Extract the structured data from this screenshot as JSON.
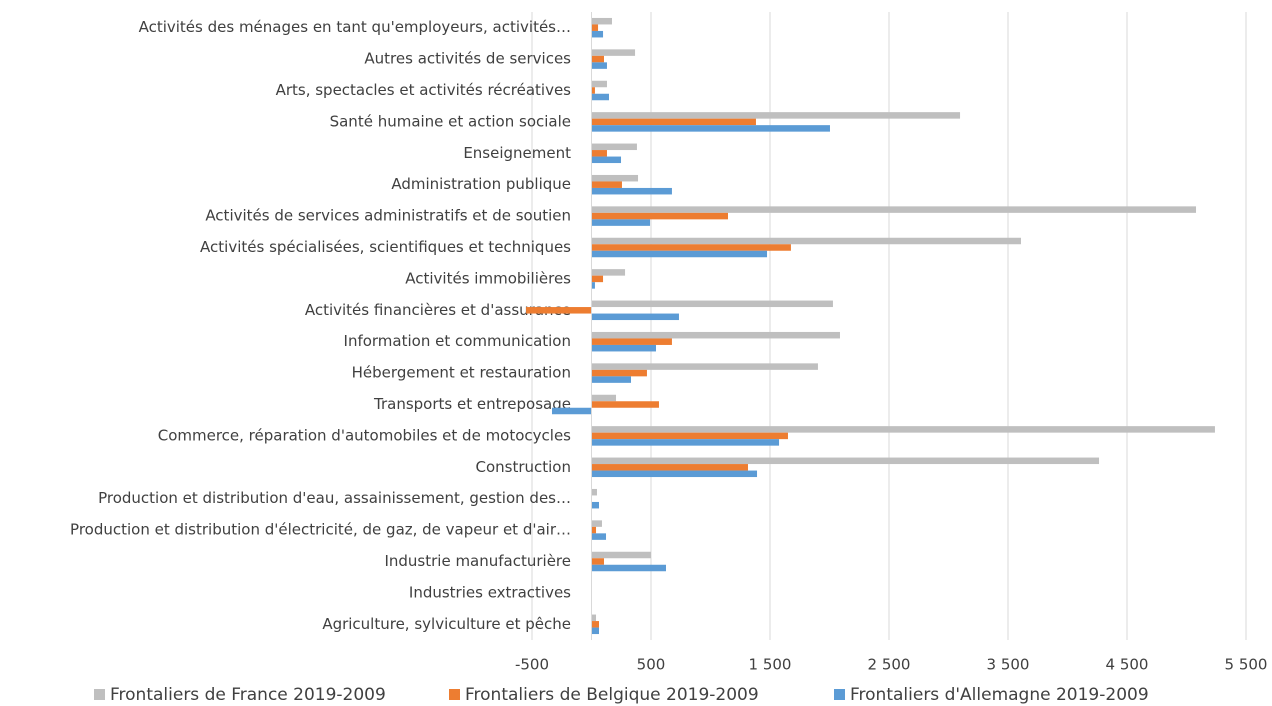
{
  "chart_data": {
    "type": "hbar",
    "categories": [
      "Agriculture, sylviculture et pêche",
      "Industries extractives",
      "Industrie manufacturière",
      "Production et distribution d'électricité, de gaz, de vapeur et d'air…",
      "Production et distribution d'eau, assainissement, gestion des…",
      "Construction",
      "Commerce, réparation d'automobiles et de motocycles",
      "Transports et entreposage",
      "Hébergement et restauration",
      "Information et communication",
      "Activités financières et d'assurance",
      "Activités immobilières",
      "Activités spécialisées, scientifiques et techniques",
      "Activités de services administratifs et de soutien",
      "Administration publique",
      "Enseignement",
      "Santé humaine et action sociale",
      "Arts, spectacles et activités récréatives",
      "Autres activités de services",
      "Activités des ménages en tant qu'employeurs, activités…"
    ],
    "series": [
      {
        "name": "Frontaliers  de France 2019-2009",
        "color": "#bfbfbf",
        "values": [
          38,
          0,
          500,
          88,
          46,
          4265,
          5239,
          206,
          1903,
          2088,
          2029,
          282,
          3609,
          5080,
          391,
          382,
          3097,
          130,
          366,
          172
        ]
      },
      {
        "name": "Frontaliers de Belgique 2019-2009",
        "color": "#ed7d31",
        "values": [
          63,
          0,
          105,
          38,
          0,
          1315,
          1651,
          567,
          466,
          676,
          -550,
          97,
          1676,
          1147,
          256,
          130,
          1382,
          29,
          105,
          55
        ]
      },
      {
        "name": "Frontaliers d'Allemagne 2019-2009",
        "color": "#5b9bd5",
        "values": [
          63,
          0,
          626,
          122,
          63,
          1391,
          1576,
          -332,
          332,
          542,
          735,
          29,
          1475,
          492,
          676,
          248,
          2004,
          147,
          130,
          97
        ]
      }
    ],
    "xlim": [
      -500,
      5500
    ],
    "xticks": [
      -500,
      500,
      {
        "value": 1500,
        "label": "1 500"
      },
      {
        "value": 2500,
        "label": "2 500"
      },
      {
        "value": 3500,
        "label": "3 500"
      },
      {
        "value": 4500,
        "label": "4 500"
      },
      {
        "value": 5500,
        "label": "5 500"
      }
    ],
    "grid": true
  }
}
